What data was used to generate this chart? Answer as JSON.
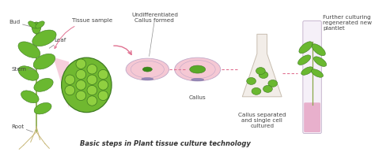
{
  "title": "Basic steps in Plant tissue culture technology",
  "background_color": "#ffffff",
  "fig_width": 4.74,
  "fig_height": 1.93,
  "dpi": 100,
  "labels": {
    "bud": "Bud",
    "leaf": "Leaf",
    "stem": "Stem",
    "root": "Root",
    "tissue_sample": "Tissue sample",
    "undifferentiated": "Undifferentiated\nCallus formed",
    "callus": "Callus",
    "callus_separated": "Callus separated\nand single cell\ncultured",
    "further_culturing": "Further culturing\nregenerated new\nplantlet"
  },
  "colors": {
    "plant_green": "#6ab830",
    "dark_green": "#3d7a20",
    "leaf_light": "#8dcf40",
    "pink_light": "#f5c8d4",
    "pink_medium": "#e8a0b0",
    "petri_border": "#c0a8c8",
    "petri_tab": "#9888b8",
    "text_dark": "#444444",
    "arrow_pink": "#e07090",
    "callus_green": "#3a8a18",
    "callus_light": "#5aaa28",
    "flask_bg": "#f2ede8",
    "flask_border": "#c8beb0",
    "tube_clear": "#f5f0f8",
    "tube_border": "#c8b8d0",
    "tube_pink": "#e8b0cc",
    "stem_color": "#88a848",
    "root_color": "#c8b878",
    "line_gray": "#909090",
    "title_color": "#333333",
    "cell_bg": "#70b830",
    "cell_border": "#3d7a20",
    "cell_inner": "#90d040"
  }
}
